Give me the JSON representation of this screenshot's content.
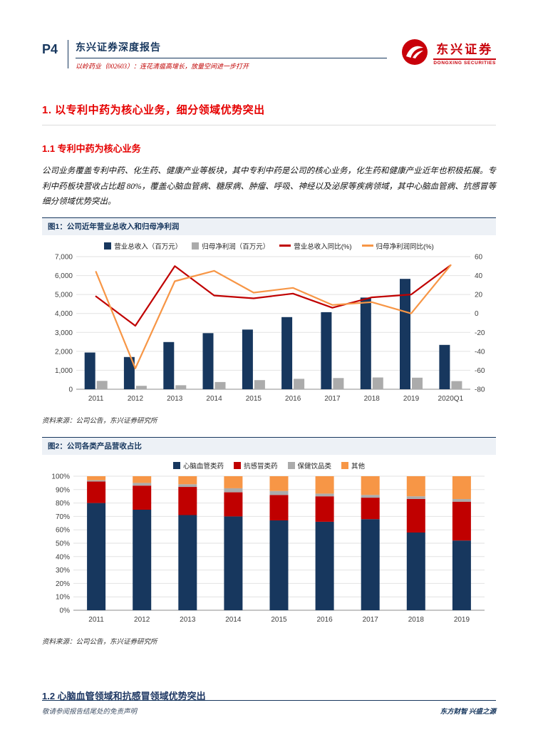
{
  "header": {
    "page_number": "P4",
    "report_type": "东兴证券深度报告",
    "report_subtitle": "以岭药业（002603）：连花清瘟高增长，放量空间进一步打开",
    "logo_cn": "东兴证券",
    "logo_en": "DONGXING SECURITIES"
  },
  "article": {
    "h1": "1. 以专利中药为核心业务，细分领域优势突出",
    "h2_1": "1.1 专利中药为核心业务",
    "paragraph": "公司业务覆盖专利中药、化生药、健康产业等板块，其中专利中药是公司的核心业务，化生药和健康产业近年也积极拓展。专利中药板块营收占比超 80%，覆盖心脑血管病、糖尿病、肿瘤、呼吸、神经以及泌尿等疾病领域，其中心脑血管病、抗感冒等细分领域优势突出。",
    "h2_2": "1.2 心脑血管领域和抗感冒领域优势突出"
  },
  "figures": {
    "fig1": {
      "title": "图1：公司近年营业总收入和归母净利润",
      "source": "资料来源：公司公告，东兴证券研究所"
    },
    "fig2": {
      "title": "图2：公司各类产品营收占比",
      "source": "资料来源：公司公告，东兴证券研究所"
    }
  },
  "footer": {
    "left": "敬请参阅报告结尾处的免责声明",
    "right": "东方财智 兴盛之源"
  },
  "colors": {
    "navy": "#17375E",
    "gray": "#ABABAB",
    "red": "#C00000",
    "orange": "#F79646"
  },
  "chart_data": [
    {
      "type": "bar",
      "subtype": "combo-bar-line-dual-axis",
      "title": "公司近年营业总收入和归母净利润",
      "legend_position": "top",
      "grid": true,
      "categories": [
        "2011",
        "2012",
        "2013",
        "2014",
        "2015",
        "2016",
        "2017",
        "2018",
        "2019",
        "2020Q1"
      ],
      "axes": {
        "left": {
          "min": 0,
          "max": 7000,
          "step": 1000
        },
        "right": {
          "min": -80,
          "max": 60,
          "step": 20
        }
      },
      "series": [
        {
          "name": "营业总收入（百万元）",
          "render": "bar",
          "axis": "left",
          "color": "#17375E",
          "values": [
            1940,
            1700,
            2490,
            2960,
            3150,
            3810,
            4070,
            4840,
            5825,
            2340
          ]
        },
        {
          "name": "归母净利润（百万元）",
          "render": "bar",
          "axis": "left",
          "color": "#ABABAB",
          "values": [
            440,
            180,
            210,
            380,
            480,
            550,
            590,
            620,
            610,
            430
          ]
        },
        {
          "name": "营业总收入同比(%)",
          "render": "line",
          "axis": "right",
          "color": "#C00000",
          "values": [
            18,
            -13,
            50,
            19,
            16,
            21,
            6,
            17,
            20,
            51
          ]
        },
        {
          "name": "归母净利润同比(%)",
          "render": "line",
          "axis": "right",
          "color": "#F79646",
          "values": [
            44,
            -58,
            34,
            45,
            22,
            27,
            9,
            12,
            0,
            51
          ]
        }
      ]
    },
    {
      "type": "bar",
      "subtype": "stacked-100pct",
      "title": "公司各类产品营收占比",
      "legend_position": "top",
      "grid": true,
      "unit": "%",
      "categories": [
        "2011",
        "2012",
        "2013",
        "2014",
        "2015",
        "2016",
        "2017",
        "2018",
        "2019"
      ],
      "axes": {
        "left": {
          "min": 0,
          "max": 100,
          "step": 10
        }
      },
      "series": [
        {
          "name": "心脑血管类药",
          "color": "#17375E",
          "values": [
            80,
            75,
            71,
            70,
            67,
            66,
            68,
            58,
            52
          ]
        },
        {
          "name": "抗感冒类药",
          "color": "#C00000",
          "values": [
            16,
            18,
            21,
            18,
            19,
            19,
            16,
            25,
            29
          ]
        },
        {
          "name": "保健饮品类",
          "color": "#ABABAB",
          "values": [
            1,
            2,
            2,
            3,
            3,
            2,
            2,
            2,
            2
          ]
        },
        {
          "name": "其他",
          "color": "#F79646",
          "values": [
            3,
            5,
            6,
            9,
            11,
            13,
            14,
            15,
            17
          ]
        }
      ]
    }
  ]
}
